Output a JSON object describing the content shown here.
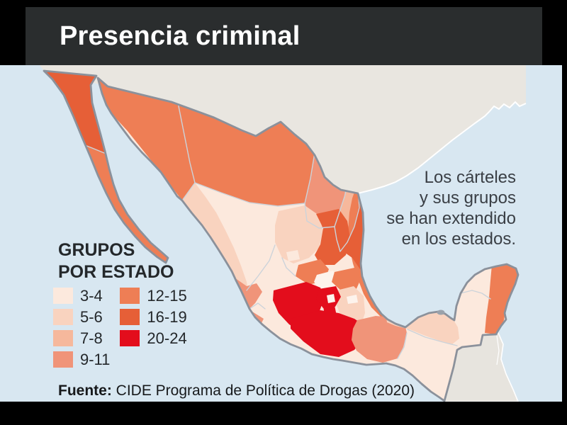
{
  "title": "Presencia criminal",
  "note": {
    "lines": [
      "Los cárteles",
      "y sus grupos",
      "se han extendido",
      "en los estados."
    ]
  },
  "legend": {
    "title_line1": "GRUPOS",
    "title_line2": "POR ESTADO",
    "classes": [
      {
        "label": "3-4",
        "color": "#fce9dd"
      },
      {
        "label": "5-6",
        "color": "#f9d3bf"
      },
      {
        "label": "7-8",
        "color": "#f6b89c"
      },
      {
        "label": "9-11",
        "color": "#f09479"
      },
      {
        "label": "12-15",
        "color": "#ee7e55"
      },
      {
        "label": "16-19",
        "color": "#e65f37"
      },
      {
        "label": "20-24",
        "color": "#e30d1c"
      }
    ]
  },
  "source": {
    "label": "Fuente:",
    "text": " CIDE Programa de Política de Drogas (2020)"
  },
  "map": {
    "sea_color": "#d8e7f1",
    "foreign_land_color": "#e9e6e0",
    "guatemala_land_color": "#e7e4de",
    "country_border_color": "#8b919b",
    "state_border_color": "#ccd3da",
    "coastline_highlight_color": "#ffffff",
    "near_white_color": "#fdf3ec",
    "city_marker_color": "#9aa2ab",
    "states": [
      {
        "id": "baja_california",
        "name": "Baja California",
        "groups": "16-19"
      },
      {
        "id": "baja_california_sur",
        "name": "Baja California Sur",
        "groups": "12-15"
      },
      {
        "id": "sonora",
        "name": "Sonora",
        "groups": "12-15"
      },
      {
        "id": "chihuahua",
        "name": "Chihuahua",
        "groups": "12-15"
      },
      {
        "id": "coahuila",
        "name": "Coahuila",
        "groups": "9-11"
      },
      {
        "id": "nuevo_leon",
        "name": "Nuevo León",
        "groups": "7-8"
      },
      {
        "id": "tamaulipas",
        "name": "Tamaulipas",
        "groups": "16-19"
      },
      {
        "id": "durango",
        "name": "Durango",
        "groups": "3-4"
      },
      {
        "id": "sinaloa",
        "name": "Sinaloa",
        "groups": "5-6"
      },
      {
        "id": "zacatecas",
        "name": "Zacatecas",
        "groups": "5-6"
      },
      {
        "id": "san_luis_potosi",
        "name": "San Luis Potosí",
        "groups": "16-19"
      },
      {
        "id": "nayarit",
        "name": "Nayarit",
        "groups": "9-11"
      },
      {
        "id": "jalisco",
        "name": "Jalisco",
        "groups": "3-4"
      },
      {
        "id": "aguascalientes",
        "name": "Aguascalientes",
        "groups": "3-4"
      },
      {
        "id": "guanajuato",
        "name": "Guanajuato",
        "groups": "12-15"
      },
      {
        "id": "queretaro",
        "name": "Querétaro",
        "groups": "3-4",
        "tint": "near_white"
      },
      {
        "id": "hidalgo",
        "name": "Hidalgo",
        "groups": "12-15"
      },
      {
        "id": "colima",
        "name": "Colima",
        "groups": "9-11"
      },
      {
        "id": "michoacan",
        "name": "Michoacán",
        "groups": "20-24"
      },
      {
        "id": "estado_de_mexico",
        "name": "Estado de México",
        "groups": "20-24"
      },
      {
        "id": "ciudad_de_mexico",
        "name": "Ciudad de México",
        "groups": "3-4",
        "tint": "near_white"
      },
      {
        "id": "morelos",
        "name": "Morelos",
        "groups": "20-24"
      },
      {
        "id": "tlaxcala",
        "name": "Tlaxcala",
        "groups": "3-4",
        "tint": "near_white"
      },
      {
        "id": "puebla",
        "name": "Puebla",
        "groups": "5-6"
      },
      {
        "id": "veracruz",
        "name": "Veracruz",
        "groups": "12-15"
      },
      {
        "id": "guerrero",
        "name": "Guerrero",
        "groups": "20-24"
      },
      {
        "id": "oaxaca",
        "name": "Oaxaca",
        "groups": "9-11"
      },
      {
        "id": "chiapas",
        "name": "Chiapas",
        "groups": "3-4"
      },
      {
        "id": "tabasco",
        "name": "Tabasco",
        "groups": "5-6"
      },
      {
        "id": "campeche",
        "name": "Campeche",
        "groups": "3-4"
      },
      {
        "id": "yucatan",
        "name": "Yucatán",
        "groups": "3-4"
      },
      {
        "id": "quintana_roo",
        "name": "Quintana Roo",
        "groups": "12-15"
      }
    ]
  }
}
